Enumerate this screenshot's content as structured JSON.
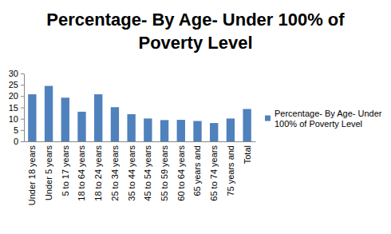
{
  "chart_data": {
    "type": "bar",
    "title": "Percentage- By Age- Under 100% of Poverty Level",
    "categories": [
      "Under 18 years",
      "Under 5 years",
      "5 to 17 years",
      "18 to 64 years",
      "18 to 24 years",
      "25 to 34 years",
      "35 to 44 years",
      "45 to 54 years",
      "55 to 59 years",
      "60 to 64 years",
      "65 years and",
      "65 to 74 years",
      "75 years and",
      "Total"
    ],
    "series": [
      {
        "name": "Percentage- By Age- Under 100% of Poverty Level",
        "color": "#4f81bd",
        "values": [
          20.8,
          24.5,
          19.3,
          13.1,
          20.8,
          15.1,
          12.0,
          10.1,
          9.4,
          9.5,
          9.0,
          8.1,
          10.1,
          14.3
        ]
      }
    ],
    "ylim": [
      0,
      30
    ],
    "yticks": [
      0,
      5,
      10,
      15,
      20,
      25,
      30
    ],
    "grid": false,
    "legend": "right"
  }
}
